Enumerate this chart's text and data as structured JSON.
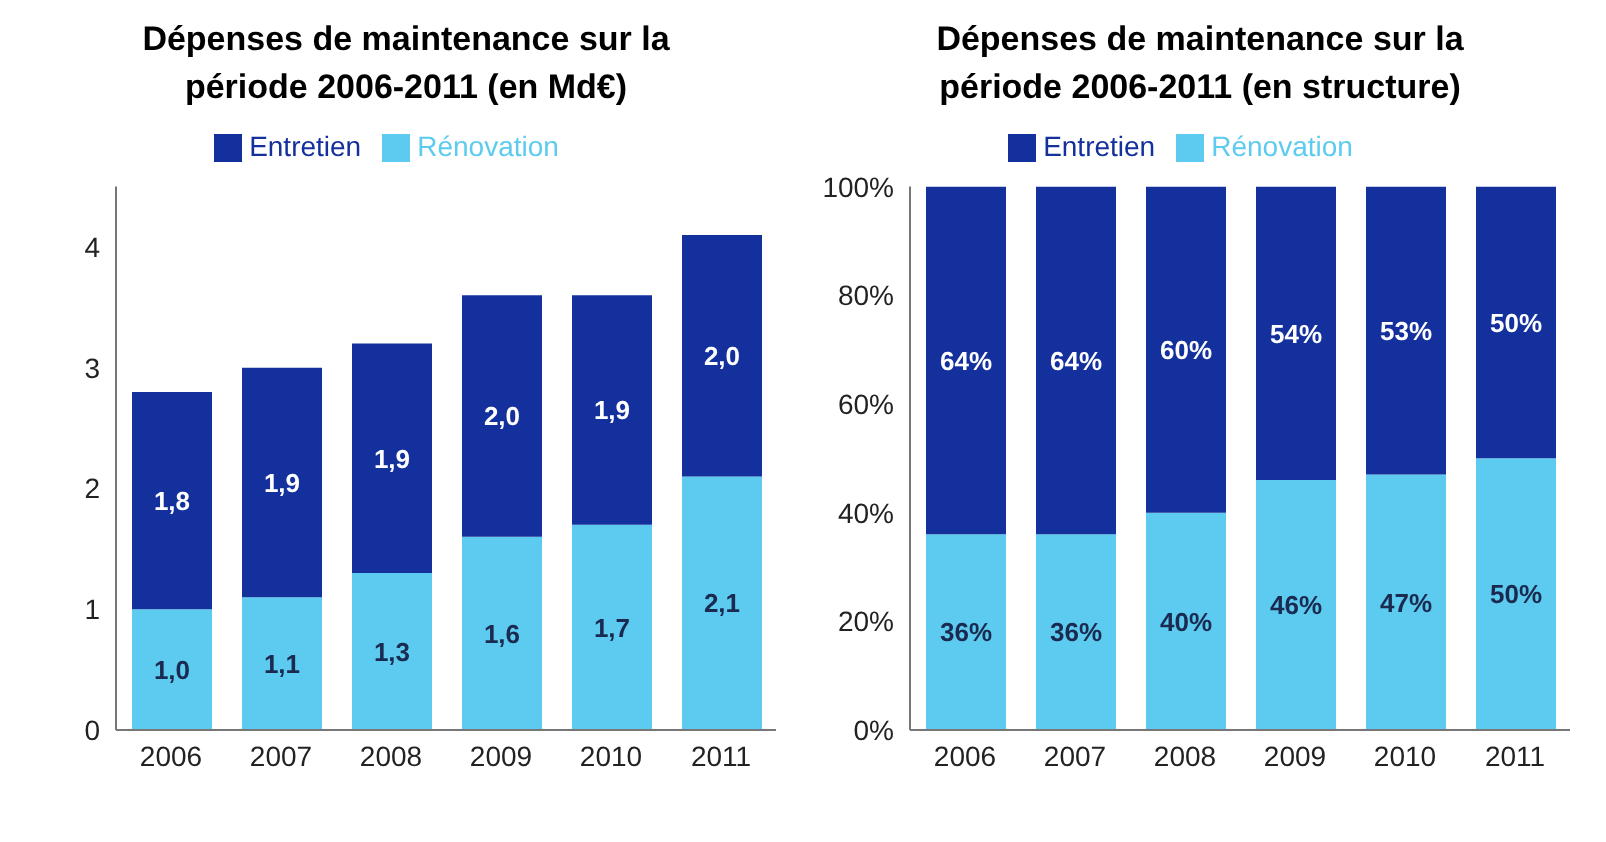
{
  "chart_data": [
    {
      "type": "bar",
      "title": "Dépenses de maintenance sur la période 2006-2011 (en Md€)",
      "categories": [
        "2006",
        "2007",
        "2008",
        "2009",
        "2010",
        "2011"
      ],
      "stacked": true,
      "legend": "top",
      "grid": false,
      "ylim": [
        0,
        4.5
      ],
      "yticks": [
        0,
        1,
        2,
        3,
        4
      ],
      "series": [
        {
          "name": "Rénovation",
          "color": "#5ccbef",
          "values": [
            1.0,
            1.1,
            1.3,
            1.6,
            1.7,
            2.1
          ],
          "value_labels": [
            "1,0",
            "1,1",
            "1,3",
            "1,6",
            "1,7",
            "2,1"
          ]
        },
        {
          "name": "Entretien",
          "color": "#13309c",
          "values": [
            1.8,
            1.9,
            1.9,
            2.0,
            1.9,
            2.0
          ],
          "value_labels": [
            "1,8",
            "1,9",
            "1,9",
            "2,0",
            "1,9",
            "2,0"
          ]
        }
      ]
    },
    {
      "type": "bar",
      "title": "Dépenses de maintenance sur la période 2006-2011 (en structure)",
      "categories": [
        "2006",
        "2007",
        "2008",
        "2009",
        "2010",
        "2011"
      ],
      "stacked": true,
      "legend": "top",
      "grid": false,
      "ylim": [
        0,
        100
      ],
      "yticks": [
        {
          "value": 0,
          "label": "0%"
        },
        {
          "value": 20,
          "label": "20%"
        },
        {
          "value": 40,
          "label": "40%"
        },
        {
          "value": 60,
          "label": "60%"
        },
        {
          "value": 80,
          "label": "80%"
        },
        {
          "value": 100,
          "label": "100%"
        }
      ],
      "series": [
        {
          "name": "Rénovation",
          "color": "#5ccbef",
          "values": [
            36,
            36,
            40,
            46,
            47,
            50
          ],
          "value_labels": [
            "36%",
            "36%",
            "40%",
            "46%",
            "47%",
            "50%"
          ]
        },
        {
          "name": "Entretien",
          "color": "#13309c",
          "values": [
            64,
            64,
            60,
            54,
            53,
            50
          ],
          "value_labels": [
            "64%",
            "64%",
            "60%",
            "54%",
            "53%",
            "50%"
          ]
        }
      ]
    }
  ]
}
